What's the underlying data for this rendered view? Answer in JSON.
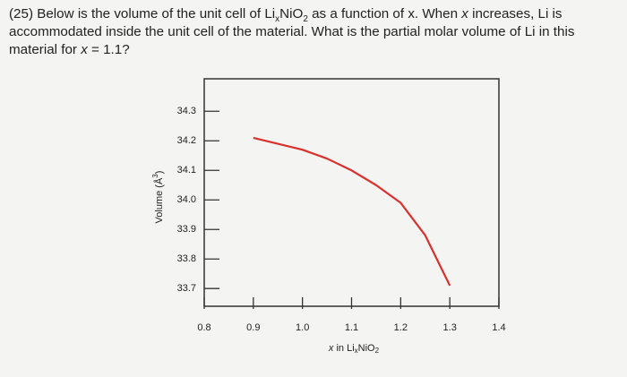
{
  "question": [
    "(25) Below is the volume of the unit cell of Li",
    "x",
    "NiO",
    "2",
    " as a function of x. When ",
    "x",
    " increases, Li is accommodated inside the unit cell of the material. What is the partial molar volume of Li in this material for ",
    "x",
    " = 1.1?"
  ],
  "chart_data": {
    "type": "line",
    "y_label": [
      "Volume (Å",
      "3",
      ")"
    ],
    "x_label": [
      "x",
      " in Li",
      "x",
      "NiO",
      "2"
    ],
    "x": [
      0.9,
      1.0,
      1.05,
      1.1,
      1.15,
      1.2,
      1.25,
      1.3
    ],
    "series": [
      {
        "color": "#d9312e",
        "values": [
          34.21,
          34.17,
          34.14,
          34.1,
          34.05,
          33.99,
          33.88,
          33.71
        ]
      }
    ],
    "xlim": [
      0.8,
      1.4
    ],
    "xticks": [
      0.8,
      0.9,
      {
        "value": 1,
        "label": "1.0"
      },
      1.1,
      1.2,
      1.3,
      1.4
    ],
    "ylim": [
      33.64,
      34.41
    ],
    "yticks": [
      33.7,
      33.8,
      33.9,
      {
        "value": 34,
        "label": "34.0"
      },
      34.1,
      34.2,
      34.3
    ]
  }
}
